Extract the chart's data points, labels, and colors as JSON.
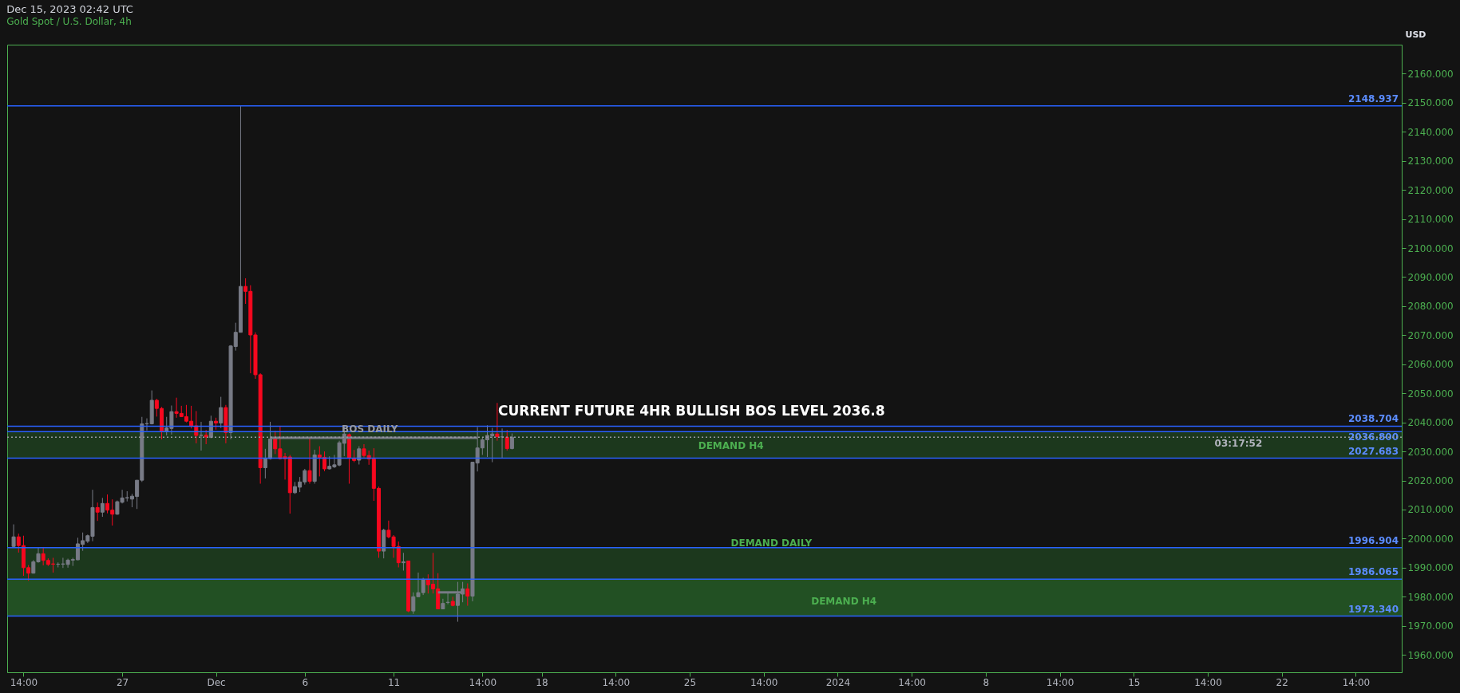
{
  "chart_data": {
    "type": "candlestick",
    "title": "Dec 15, 2023 02:42 UTC",
    "subtitle": "Gold Spot / U.S. Dollar, 4h",
    "ylabel": "USD",
    "categories": [
      null,
      null,
      "14:00",
      null,
      null,
      null,
      null,
      null,
      null,
      null,
      null,
      null,
      null,
      null,
      null,
      null,
      null,
      null,
      null,
      null,
      null,
      null,
      "27",
      null,
      null,
      null,
      null,
      null,
      null,
      null,
      null,
      null,
      null,
      null,
      null,
      null,
      null,
      null,
      null,
      null,
      null,
      "Dec",
      null,
      null,
      null,
      null,
      null,
      null,
      null,
      null,
      null,
      null,
      null,
      null,
      null,
      null,
      null,
      null,
      null,
      "6",
      null,
      null,
      null,
      null,
      null,
      null,
      null,
      null,
      null,
      null,
      null,
      null,
      null,
      null,
      null,
      null,
      null,
      "11",
      null,
      null,
      null,
      null,
      null,
      null,
      null,
      null,
      null,
      null,
      null,
      null,
      null,
      null,
      null,
      null,
      null,
      "14:00",
      null,
      null,
      null,
      null,
      null,
      null,
      null,
      null,
      null,
      null,
      null,
      "18",
      null,
      null,
      null,
      null,
      null,
      null,
      null,
      null,
      null,
      null,
      null,
      null,
      null,
      null,
      "14:00",
      null,
      null,
      null,
      null,
      null,
      null,
      null,
      null,
      null,
      null,
      null,
      null,
      null,
      null,
      "25",
      null,
      null,
      null,
      null,
      null,
      null,
      null,
      null,
      null,
      null,
      null,
      null,
      null,
      null,
      "14:00",
      null,
      null,
      null,
      null,
      null,
      null,
      null,
      null,
      null,
      null,
      null,
      null,
      null,
      null,
      "2024",
      null,
      null,
      null,
      null,
      null,
      null,
      null,
      null,
      null,
      null,
      null,
      null,
      null,
      null,
      "14:00",
      null,
      null,
      null,
      null,
      null,
      null,
      null,
      null,
      null,
      null,
      null,
      null,
      null,
      null,
      "8",
      null,
      null,
      null,
      null,
      null,
      null,
      null,
      null,
      null,
      null,
      null,
      null,
      null,
      null,
      "14:00",
      null,
      null,
      null,
      null,
      null,
      null,
      null,
      null,
      null,
      null,
      null,
      null,
      null,
      null,
      "15",
      null,
      null,
      null,
      null,
      null,
      null,
      null,
      null,
      null,
      null,
      null,
      null,
      null,
      null,
      "14:00",
      null,
      null,
      null,
      null,
      null,
      null,
      null,
      null,
      null,
      null,
      null,
      null,
      null,
      null,
      "22",
      null,
      null,
      null,
      null,
      null,
      null,
      null,
      null,
      null,
      null,
      null,
      null,
      null,
      null,
      "14:00",
      null,
      null,
      null,
      null,
      null,
      null,
      null,
      null
    ],
    "ohlc": [
      [
        1997.3,
        2004.9,
        1996.9,
        2000.6
      ],
      [
        2000.6,
        2001.7,
        1995.2,
        1997.6
      ],
      [
        1997.6,
        2001.0,
        1987.2,
        1990.0
      ],
      [
        1990.0,
        1990.9,
        1985.5,
        1988.1
      ],
      [
        1988.1,
        1992.6,
        1988.0,
        1992.0
      ],
      [
        1992.0,
        1996.8,
        1991.7,
        1994.8
      ],
      [
        1994.8,
        1997.1,
        1990.8,
        1992.5
      ],
      [
        1992.5,
        1993.2,
        1990.6,
        1991.1
      ],
      [
        1991.3,
        1993.4,
        1988.3,
        1991.2
      ],
      [
        1991.2,
        1991.8,
        1990.1,
        1991.2
      ],
      [
        1991.2,
        1993.4,
        1989.9,
        1991.3
      ],
      [
        1991.1,
        1993.1,
        1990.0,
        1992.6
      ],
      [
        1992.6,
        1993.4,
        1990.6,
        1992.8
      ],
      [
        1992.7,
        2000.3,
        1992.6,
        1998.2
      ],
      [
        1998.0,
        2002.1,
        1995.8,
        1999.3
      ],
      [
        1999.1,
        2001.4,
        1998.5,
        2001.0
      ],
      [
        2000.8,
        2016.8,
        1999.1,
        2010.7
      ],
      [
        2010.7,
        2012.4,
        2006.1,
        2009.1
      ],
      [
        2009.1,
        2014.0,
        2007.5,
        2012.1
      ],
      [
        2012.1,
        2015.2,
        2008.7,
        2009.8
      ],
      [
        2009.8,
        2013.5,
        2004.5,
        2008.4
      ],
      [
        2008.4,
        2013.1,
        2008.2,
        2012.7
      ],
      [
        2012.5,
        2016.8,
        2012.1,
        2014.0
      ],
      [
        2014.0,
        2016.3,
        2012.8,
        2014.1
      ],
      [
        2013.6,
        2015.4,
        2010.8,
        2014.6
      ],
      [
        2014.5,
        2020.1,
        2010.2,
        2020.1
      ],
      [
        2020.1,
        2041.9,
        2019.5,
        2039.5
      ],
      [
        2039.5,
        2041.4,
        2037.2,
        2039.6
      ],
      [
        2039.5,
        2051.0,
        2039.3,
        2047.6
      ],
      [
        2047.6,
        2048.1,
        2042.0,
        2044.8
      ],
      [
        2044.8,
        2045.3,
        2034.2,
        2036.9
      ],
      [
        2036.9,
        2041.9,
        2035.5,
        2038.1
      ],
      [
        2037.9,
        2045.8,
        2035.8,
        2043.7
      ],
      [
        2043.7,
        2048.5,
        2041.6,
        2043.1
      ],
      [
        2043.1,
        2045.7,
        2041.9,
        2042.0
      ],
      [
        2042.0,
        2046.0,
        2040.0,
        2040.4
      ],
      [
        2040.4,
        2045.7,
        2037.9,
        2038.8
      ],
      [
        2038.8,
        2043.9,
        2032.8,
        2035.5
      ],
      [
        2035.5,
        2040.2,
        2030.3,
        2035.6
      ],
      [
        2035.6,
        2037.4,
        2032.5,
        2035.0
      ],
      [
        2034.8,
        2042.3,
        2034.6,
        2040.4
      ],
      [
        2040.4,
        2041.6,
        2037.5,
        2039.8
      ],
      [
        2039.8,
        2048.8,
        2038.1,
        2045.1
      ],
      [
        2045.1,
        2046.0,
        2032.8,
        2036.5
      ],
      [
        2036.5,
        2066.6,
        2034.2,
        2066.3
      ],
      [
        2066.1,
        2074.3,
        2064.7,
        2071.0
      ],
      [
        2071.0,
        2148.9,
        2071.0,
        2086.8
      ],
      [
        2086.8,
        2089.6,
        2080.8,
        2085.1
      ],
      [
        2085.1,
        2087.2,
        2056.9,
        2070.1
      ],
      [
        2070.1,
        2071.0,
        2055.0,
        2056.4
      ],
      [
        2056.4,
        2056.9,
        2018.9,
        2024.4
      ],
      [
        2024.4,
        2030.9,
        2020.7,
        2027.7
      ],
      [
        2027.5,
        2040.2,
        2027.2,
        2034.3
      ],
      [
        2034.3,
        2037.1,
        2029.1,
        2030.9
      ],
      [
        2030.9,
        2038.5,
        2027.2,
        2027.5
      ],
      [
        2028.2,
        2029.5,
        2020.3,
        2027.5
      ],
      [
        2028.1,
        2028.8,
        2008.6,
        2015.8
      ],
      [
        2015.8,
        2019.5,
        2015.4,
        2017.9
      ],
      [
        2017.7,
        2021.2,
        2016.0,
        2019.5
      ],
      [
        2019.5,
        2024.0,
        2018.6,
        2023.4
      ],
      [
        2023.4,
        2034.6,
        2018.9,
        2019.7
      ],
      [
        2019.7,
        2030.6,
        2018.9,
        2028.8
      ],
      [
        2028.8,
        2031.8,
        2021.4,
        2028.0
      ],
      [
        2028.0,
        2030.0,
        2023.2,
        2024.0
      ],
      [
        2024.0,
        2028.3,
        2023.8,
        2024.9
      ],
      [
        2024.7,
        2028.8,
        2024.3,
        2025.4
      ],
      [
        2025.3,
        2033.7,
        2024.9,
        2033.0
      ],
      [
        2032.8,
        2038.8,
        2028.4,
        2036.0
      ],
      [
        2035.8,
        2036.2,
        2018.9,
        2027.7
      ],
      [
        2027.7,
        2030.5,
        2026.3,
        2026.9
      ],
      [
        2027.0,
        2031.8,
        2025.5,
        2030.9
      ],
      [
        2030.9,
        2032.5,
        2027.9,
        2028.6
      ],
      [
        2028.6,
        2030.3,
        2025.4,
        2027.4
      ],
      [
        2027.4,
        2031.1,
        2013.0,
        2017.3
      ],
      [
        2017.3,
        2017.9,
        1993.4,
        1995.7
      ],
      [
        1995.7,
        2003.4,
        1993.2,
        2002.9
      ],
      [
        2002.9,
        2006.2,
        2000.1,
        2000.6
      ],
      [
        2000.6,
        2001.2,
        1993.4,
        1997.3
      ],
      [
        1997.3,
        1999.0,
        1990.1,
        1991.7
      ],
      [
        1991.7,
        1995.1,
        1989.0,
        1992.0
      ],
      [
        1992.3,
        1992.3,
        1974.7,
        1975.1
      ],
      [
        1975.1,
        1981.5,
        1974.1,
        1980.0
      ],
      [
        1980.0,
        1988.3,
        1980.0,
        1981.4
      ],
      [
        1981.4,
        1986.5,
        1980.6,
        1986.0
      ],
      [
        1986.0,
        1987.7,
        1981.1,
        1984.1
      ],
      [
        1984.3,
        1995.1,
        1981.1,
        1982.7
      ],
      [
        1982.7,
        1988.1,
        1975.8,
        1975.8
      ],
      [
        1975.8,
        1979.3,
        1975.8,
        1977.7
      ],
      [
        1978.0,
        1981.4,
        1977.4,
        1978.1
      ],
      [
        1978.4,
        1980.0,
        1976.7,
        1977.0
      ],
      [
        1977.0,
        1985.1,
        1971.4,
        1980.9
      ],
      [
        1980.9,
        1985.1,
        1978.1,
        1982.7
      ],
      [
        1982.7,
        1984.6,
        1976.9,
        1980.2
      ],
      [
        1980.2,
        2026.3,
        1978.4,
        2026.3
      ],
      [
        2026.0,
        2038.4,
        2023.1,
        2031.2
      ],
      [
        2031.2,
        2034.9,
        2028.8,
        2034.0
      ],
      [
        2034.0,
        2039.0,
        2028.1,
        2035.5
      ],
      [
        2035.4,
        2038.1,
        2026.3,
        2036.0
      ],
      [
        2036.0,
        2046.7,
        2033.7,
        2035.1
      ],
      [
        2035.0,
        2037.9,
        2027.7,
        2035.0
      ],
      [
        2034.9,
        2037.4,
        2030.3,
        2031.0
      ],
      [
        2031.0,
        2036.2,
        2030.7,
        2034.9
      ],
      null,
      null,
      null,
      null,
      null,
      null,
      null,
      null,
      null,
      null,
      null,
      null,
      null,
      null,
      null,
      null,
      null,
      null,
      null,
      null,
      null,
      null,
      null,
      null,
      null,
      null,
      null,
      null,
      null,
      null,
      null,
      null,
      null,
      null,
      null,
      null,
      null,
      null,
      null,
      null,
      null,
      null,
      null,
      null,
      null,
      null,
      null,
      null,
      null,
      null,
      null,
      null,
      null,
      null,
      null,
      null,
      null,
      null,
      null,
      null,
      null,
      null,
      null,
      null,
      null,
      null,
      null,
      null,
      null,
      null,
      null,
      null,
      null,
      null,
      null,
      null,
      null,
      null,
      null,
      null,
      null,
      null,
      null,
      null,
      null,
      null,
      null,
      null,
      null,
      null,
      null,
      null,
      null,
      null,
      null,
      null,
      null,
      null,
      null,
      null,
      null,
      null,
      null,
      null,
      null,
      null,
      null,
      null,
      null,
      null,
      null,
      null,
      null,
      null,
      null,
      null,
      null,
      null,
      null,
      null,
      null,
      null,
      null,
      null,
      null,
      null,
      null,
      null,
      null,
      null,
      null,
      null,
      null,
      null,
      null,
      null,
      null,
      null,
      null,
      null,
      null,
      null,
      null,
      null,
      null,
      null,
      null,
      null,
      null,
      null,
      null,
      null,
      null,
      null,
      null,
      null,
      null,
      null,
      null,
      null,
      null,
      null,
      null,
      null,
      null,
      null,
      null,
      null,
      null,
      null,
      null,
      null,
      null,
      null,
      null,
      null,
      null,
      null,
      null
    ],
    "series": [
      {
        "type": "line",
        "color": "#787b86",
        "values": [
          null,
          null,
          null,
          null,
          null,
          null,
          null,
          null,
          null,
          null,
          null,
          null,
          null,
          null,
          null,
          null,
          null,
          null,
          null,
          null,
          null,
          null,
          null,
          null,
          null,
          null,
          null,
          null,
          null,
          null,
          null,
          null,
          null,
          null,
          null,
          null,
          null,
          null,
          null,
          null,
          null,
          null,
          null,
          null,
          null,
          null,
          null,
          null,
          null,
          null,
          null,
          null,
          2034.7,
          2034.7,
          2034.7,
          2034.7,
          2034.7,
          2034.7,
          2034.7,
          2034.7,
          2034.7,
          2034.7,
          2034.7,
          2034.7,
          2034.7,
          2034.7,
          2034.7,
          2034.7,
          2034.7,
          2034.7,
          2034.7,
          2034.7,
          2034.7,
          2034.7,
          2034.7,
          2034.7,
          2034.7,
          2034.7,
          2034.7,
          2034.7,
          2034.7,
          2034.7,
          2034.7,
          2034.7,
          2034.7,
          2034.7,
          2034.7,
          2034.7,
          2034.7,
          2034.7,
          2034.7,
          2034.7,
          2034.7,
          2034.7,
          2034.7,
          null,
          null,
          null,
          null,
          null,
          null,
          null,
          null,
          null,
          null,
          null,
          null,
          null,
          null,
          null,
          null,
          null,
          null,
          null,
          null,
          null,
          null,
          null,
          null,
          null,
          null,
          null,
          null,
          null,
          null,
          null,
          null,
          null,
          null,
          null,
          null,
          null,
          null,
          null,
          null,
          null,
          null,
          null,
          null,
          null,
          null,
          null,
          null,
          null,
          null,
          null,
          null,
          null,
          null,
          null,
          null,
          null,
          null,
          null,
          null,
          null,
          null,
          null,
          null,
          null,
          null,
          null,
          null,
          null,
          null,
          null,
          null,
          null,
          null,
          null,
          null,
          null,
          null,
          null,
          null,
          null,
          null,
          null,
          null,
          null,
          null,
          null,
          null,
          null,
          null,
          null,
          null,
          null,
          null,
          null,
          null,
          null,
          null,
          null,
          null,
          null,
          null,
          null,
          null,
          null,
          null,
          null,
          null,
          null,
          null,
          null,
          null,
          null,
          null,
          null,
          null,
          null,
          null,
          null,
          null,
          null,
          null,
          null,
          null,
          null,
          null,
          null,
          null,
          null,
          null,
          null,
          null,
          null,
          null,
          null,
          null,
          null,
          null,
          null,
          null,
          null,
          null,
          null,
          null,
          null,
          null,
          null,
          null,
          null,
          null,
          null,
          null,
          null,
          null,
          null,
          null,
          null,
          null,
          null,
          null,
          null,
          null,
          null,
          null,
          null,
          null,
          null,
          null,
          null,
          null,
          null,
          null,
          null,
          null,
          null,
          null,
          null,
          null,
          null,
          null,
          null,
          null,
          null,
          null,
          null,
          null
        ]
      },
      {
        "type": "line",
        "color": "#787b86",
        "values": [
          null,
          null,
          null,
          null,
          null,
          null,
          null,
          null,
          null,
          null,
          null,
          null,
          null,
          null,
          null,
          null,
          null,
          null,
          null,
          null,
          null,
          null,
          null,
          null,
          null,
          null,
          null,
          null,
          null,
          null,
          null,
          null,
          null,
          null,
          null,
          null,
          null,
          null,
          null,
          null,
          null,
          null,
          null,
          null,
          null,
          null,
          null,
          null,
          null,
          null,
          null,
          null,
          null,
          null,
          null,
          null,
          null,
          null,
          null,
          null,
          null,
          null,
          null,
          null,
          null,
          null,
          null,
          null,
          null,
          null,
          null,
          null,
          null,
          null,
          null,
          null,
          null,
          null,
          null,
          null,
          null,
          null,
          null,
          null,
          null,
          null,
          1981.5,
          1981.5,
          1981.5,
          1981.5,
          1981.5,
          1981.5,
          null,
          null,
          null,
          null,
          null,
          null,
          null,
          null,
          null,
          null,
          null,
          null,
          null,
          null,
          null,
          null,
          null,
          null,
          null,
          null,
          null,
          null,
          null,
          null,
          null,
          null,
          null,
          null,
          null,
          null,
          null,
          null,
          null,
          null,
          null,
          null,
          null,
          null,
          null,
          null,
          null,
          null,
          null,
          null,
          null,
          null,
          null,
          null,
          null,
          null,
          null,
          null,
          null,
          null,
          null,
          null,
          null,
          null,
          null,
          null,
          null,
          null,
          null,
          null,
          null,
          null,
          null,
          null,
          null,
          null,
          null,
          null,
          null,
          null,
          null,
          null,
          null,
          null,
          null,
          null,
          null,
          null,
          null,
          null,
          null,
          null,
          null,
          null,
          null,
          null,
          null,
          null,
          null,
          null,
          null,
          null,
          null,
          null,
          null,
          null,
          null,
          null,
          null,
          null,
          null,
          null,
          null,
          null,
          null,
          null,
          null,
          null,
          null,
          null,
          null,
          null,
          null,
          null,
          null,
          null,
          null,
          null,
          null,
          null,
          null,
          null,
          null,
          null,
          null,
          null,
          null,
          null,
          null,
          null,
          null,
          null,
          null,
          null,
          null,
          null,
          null,
          null,
          null,
          null,
          null,
          null,
          null,
          null,
          null,
          null,
          null,
          null,
          null,
          null,
          null,
          null,
          null,
          null,
          null,
          null,
          null,
          null,
          null,
          null,
          null,
          null,
          null,
          null,
          null,
          null,
          null,
          null,
          null,
          null,
          null,
          null,
          null,
          null,
          null,
          null,
          null,
          null,
          null,
          null,
          null,
          null,
          null,
          null,
          null
        ]
      }
    ],
    "ylim": [
      1954,
      2170
    ],
    "yticks": [
      {
        "value": 1960,
        "label": "1960.000"
      },
      {
        "value": 1970,
        "label": "1970.000"
      },
      {
        "value": 1980,
        "label": "1980.000"
      },
      {
        "value": 1990,
        "label": "1990.000"
      },
      {
        "value": 2000,
        "label": "2000.000"
      },
      {
        "value": 2010,
        "label": "2010.000"
      },
      {
        "value": 2020,
        "label": "2020.000"
      },
      {
        "value": 2030,
        "label": "2030.000"
      },
      {
        "value": 2040,
        "label": "2040.000"
      },
      {
        "value": 2050,
        "label": "2050.000"
      },
      {
        "value": 2060,
        "label": "2060.000"
      },
      {
        "value": 2070,
        "label": "2070.000"
      },
      {
        "value": 2080,
        "label": "2080.000"
      },
      {
        "value": 2090,
        "label": "2090.000"
      },
      {
        "value": 2100,
        "label": "2100.000"
      },
      {
        "value": 2110,
        "label": "2110.000"
      },
      {
        "value": 2120,
        "label": "2120.000"
      },
      {
        "value": 2130,
        "label": "2130.000"
      },
      {
        "value": 2140,
        "label": "2140.000"
      },
      {
        "value": 2150,
        "label": "2150.000"
      },
      {
        "value": 2160,
        "label": "2160.000"
      }
    ],
    "ref_lines": [
      {
        "axis": "y",
        "value": 2148.937,
        "label": "2148.937",
        "color": "#2962ff"
      },
      {
        "axis": "y",
        "value": 2038.704,
        "label": "2038.704",
        "color": "#2962ff"
      },
      {
        "axis": "y",
        "value": 2036.8,
        "label": "2036.800",
        "color": "#2962ff"
      },
      {
        "axis": "y",
        "value": 2027.683,
        "label": "2027.683",
        "color": "#2962ff"
      },
      {
        "axis": "y",
        "value": 1996.904,
        "label": "1996.904",
        "color": "#2962ff"
      },
      {
        "axis": "y",
        "value": 1986.065,
        "label": "1986.065",
        "color": "#2962ff"
      },
      {
        "axis": "y",
        "value": 1973.34,
        "label": "1973.340",
        "color": "#2962ff"
      },
      {
        "axis": "y",
        "value": 2034.9,
        "color": "#9598a1",
        "line_style": "dotted"
      }
    ],
    "bands": [
      {
        "axis": "y",
        "from": 2027.683,
        "to": 2036.8,
        "color": "#2e7d32"
      },
      {
        "axis": "y",
        "from": 1973.34,
        "to": 1996.904,
        "color": "#2e7d32"
      },
      {
        "axis": "y",
        "from": 1973.34,
        "to": 1986.065,
        "color": "#2e7d32"
      }
    ],
    "annotations": [
      "CURRENT FUTURE 4HR BULLISH BOS LEVEL 2036.8",
      {
        "text": "BOS DAILY",
        "y": 2034.7
      },
      "DEMAND H4",
      "DEMAND DAILY",
      "DEMAND H4",
      "03:17:52"
    ],
    "grid": false
  }
}
